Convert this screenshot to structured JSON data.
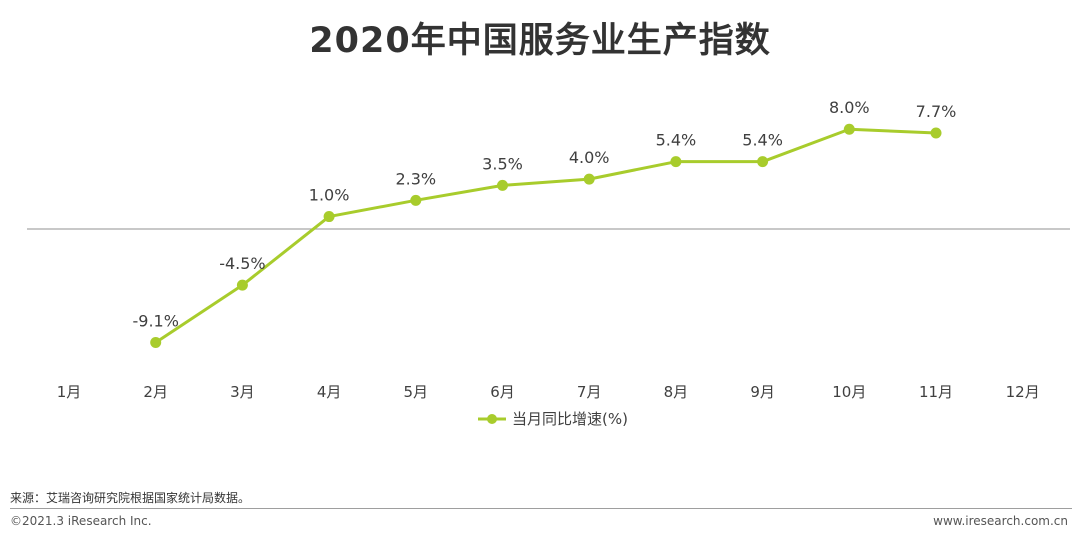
{
  "title": "2020年中国服务业生产指数",
  "chart_data": {
    "type": "line",
    "categories": [
      "1月",
      "2月",
      "3月",
      "4月",
      "5月",
      "6月",
      "7月",
      "8月",
      "9月",
      "10月",
      "11月",
      "12月"
    ],
    "series": [
      {
        "name": "当月同比增速(%)",
        "values": [
          null,
          -9.1,
          -4.5,
          1.0,
          2.3,
          3.5,
          4.0,
          5.4,
          5.4,
          8.0,
          7.7,
          null
        ],
        "labels": [
          "",
          "-9.1%",
          "-4.5%",
          "1.0%",
          "2.3%",
          "3.5%",
          "4.0%",
          "5.4%",
          "5.4%",
          "8.0%",
          "7.7%",
          ""
        ]
      }
    ],
    "baseline": 0,
    "ylim": [
      -10.5,
      8.5
    ],
    "legend_position": "bottom",
    "grid": false,
    "colors": {
      "line": "#a8cc2c",
      "baseline": "#a6a6a6",
      "label": "#404040"
    }
  },
  "footer": {
    "source": "来源：艾瑞咨询研究院根据国家统计局数据。",
    "copyright": "©2021.3 iResearch Inc.",
    "website": "www.iresearch.com.cn"
  }
}
